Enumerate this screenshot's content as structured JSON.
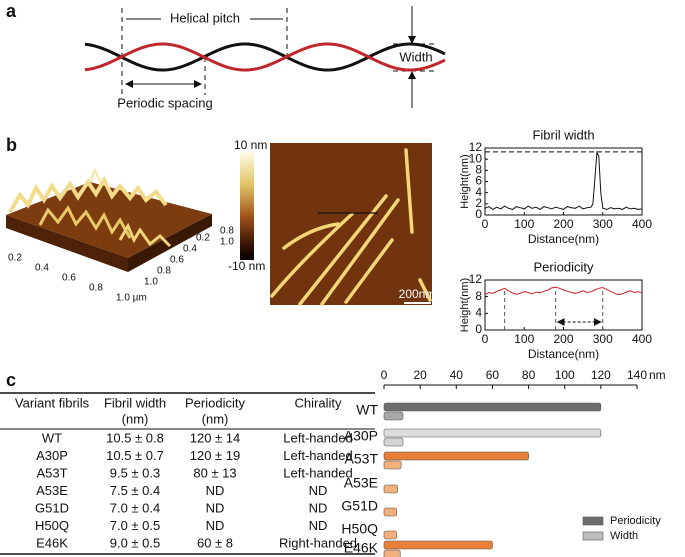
{
  "panel_a": {
    "label": "a",
    "helical_pitch": "Helical pitch",
    "periodic_spacing": "Periodic spacing",
    "width": "Width"
  },
  "panel_b": {
    "label": "b",
    "colorbar_max": "10 nm",
    "colorbar_min": "-10 nm",
    "scale_bar": "200nm",
    "surface_axis_left": [
      "0.2",
      "0.4",
      "0.6",
      "0.8",
      "1.0 µm"
    ],
    "surface_axis_right": [
      "0.2",
      "0.4",
      "0.6",
      "0.8",
      "1.0"
    ],
    "surface_axis_z": [
      "0.8",
      "1.0"
    ]
  },
  "panel_c": {
    "label": "c",
    "table": {
      "header": [
        [
          "Variant fibrils"
        ],
        [
          "Fibril width",
          "(nm)"
        ],
        [
          "Periodicity",
          "(nm)"
        ],
        [
          "Chirality"
        ]
      ],
      "rows": [
        [
          "WT",
          "10.5 ± 0.8",
          "120 ± 14",
          "Left-handed"
        ],
        [
          "A30P",
          "10.5 ± 0.7",
          "120 ± 19",
          "Left-handed"
        ],
        [
          "A53T",
          "9.5 ± 0.3",
          "80 ± 13",
          "Left-handed"
        ],
        [
          "A53E",
          "7.5 ± 0.4",
          "ND",
          "ND"
        ],
        [
          "G51D",
          "7.0 ± 0.4",
          "ND",
          "ND"
        ],
        [
          "H50Q",
          "7.0 ± 0.5",
          "ND",
          "ND"
        ],
        [
          "E46K",
          "9.0 ± 0.5",
          "60 ± 8",
          "Right-handed"
        ]
      ]
    }
  },
  "chart_data": [
    {
      "type": "line",
      "title": "Fibril width",
      "xlabel": "Distance(nm)",
      "ylabel": "Height(nm)",
      "color": "#111111",
      "x": [
        0,
        10,
        20,
        30,
        40,
        50,
        60,
        70,
        80,
        90,
        100,
        110,
        120,
        130,
        140,
        150,
        160,
        170,
        180,
        190,
        200,
        210,
        220,
        230,
        240,
        250,
        260,
        270,
        275,
        280,
        285,
        290,
        295,
        300,
        310,
        320,
        330,
        340,
        350,
        360,
        370,
        380,
        390,
        400
      ],
      "values": [
        1.2,
        1.5,
        1.0,
        1.4,
        1.1,
        1.6,
        1.2,
        1.0,
        1.5,
        1.3,
        1.1,
        1.6,
        1.2,
        1.4,
        1.0,
        1.5,
        1.3,
        1.1,
        1.4,
        1.2,
        1.0,
        1.5,
        1.3,
        1.2,
        1.6,
        1.1,
        1.3,
        1.4,
        2.0,
        6.5,
        11.2,
        10.5,
        4.0,
        1.2,
        1.0,
        1.3,
        1.1,
        1.2,
        1.0,
        1.4,
        1.1,
        1.2,
        1.0,
        1.1
      ],
      "xlim": [
        0,
        400
      ],
      "xticks": [
        0,
        100,
        200,
        300,
        400
      ],
      "ylim": [
        0,
        12
      ],
      "yticks": [
        0,
        2,
        4,
        6,
        8,
        10,
        12
      ],
      "hline": 11.3
    },
    {
      "type": "line",
      "title": "Periodicity",
      "xlabel": "Distance(nm)",
      "ylabel": "Height(nm)",
      "color": "#d42020",
      "x": [
        0,
        10,
        20,
        30,
        40,
        50,
        60,
        70,
        80,
        90,
        100,
        110,
        120,
        130,
        140,
        150,
        160,
        170,
        180,
        190,
        200,
        210,
        220,
        230,
        240,
        250,
        260,
        270,
        280,
        290,
        300,
        310,
        320,
        330,
        340,
        350,
        360,
        370,
        380,
        390,
        400
      ],
      "values": [
        8.5,
        9.0,
        8.8,
        9.3,
        9.6,
        10.0,
        9.4,
        8.9,
        8.6,
        8.8,
        9.2,
        9.0,
        8.7,
        9.1,
        8.9,
        9.3,
        9.6,
        10.1,
        10.3,
        10.0,
        9.6,
        9.3,
        9.0,
        8.8,
        9.1,
        9.4,
        9.0,
        9.2,
        9.6,
        10.0,
        10.2,
        9.7,
        9.3,
        8.8,
        8.5,
        8.7,
        9.1,
        9.4,
        9.0,
        9.2,
        9.0
      ],
      "xlim": [
        0,
        400
      ],
      "xticks": [
        0,
        100,
        200,
        300,
        400
      ],
      "ylim": [
        0,
        12
      ],
      "yticks": [
        0,
        4,
        8,
        12
      ],
      "vlines": [
        50,
        180,
        300
      ]
    },
    {
      "type": "bar",
      "orientation": "horizontal",
      "unit": "nm",
      "categories": [
        "WT",
        "A30P",
        "A53T",
        "A53E",
        "G51D",
        "H50Q",
        "E46K"
      ],
      "series": [
        {
          "name": "Periodicity",
          "color": "#6d6d6d",
          "bar_colors": [
            "#6d6d6d",
            "#dcdcdc",
            "#e8803a",
            "#e8803a",
            "#e8803a",
            "#e8803a",
            "#e8803a"
          ],
          "values": [
            120,
            120,
            80,
            null,
            null,
            null,
            60
          ]
        },
        {
          "name": "Width",
          "color": "#bdbdbd",
          "bar_colors": [
            "#a8a8a8",
            "#d4d4d4",
            "#f2b07e",
            "#f2b07e",
            "#f2b07e",
            "#f2b07e",
            "#f2b07e"
          ],
          "values": [
            10.5,
            10.5,
            9.5,
            7.5,
            7.0,
            7.0,
            9.0
          ]
        }
      ],
      "xlim": [
        0,
        140
      ],
      "xticks": [
        0,
        20,
        40,
        60,
        80,
        100,
        120,
        140
      ]
    }
  ]
}
